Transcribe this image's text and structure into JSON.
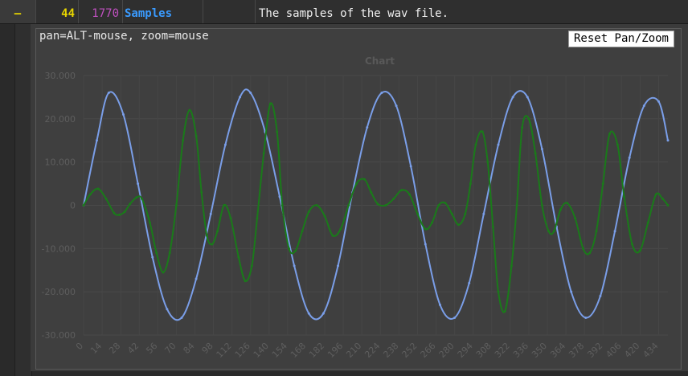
{
  "row": {
    "toggle": "–",
    "line_no": "44",
    "offset": "1770",
    "name": "Samples",
    "description": "The samples of the wav file."
  },
  "hint": "pan=ALT-mouse, zoom=mouse",
  "reset_label": "Reset Pan/Zoom",
  "colors": {
    "blue_series": "#7a9ee8",
    "green_series": "#1a7a1a",
    "toggle": "#e6d400",
    "offset": "#c050c0",
    "name": "#3a9bff"
  },
  "chart_data": {
    "type": "line",
    "title": "Chart",
    "xlabel": "",
    "ylabel": "",
    "xlim": [
      0,
      441
    ],
    "ylim": [
      -30000,
      30000
    ],
    "y_ticks": [
      30000,
      20000,
      10000,
      0,
      -10000,
      -20000,
      -30000
    ],
    "y_tick_labels": [
      "30.000",
      "20.000",
      "10.000",
      "0",
      "-10.000",
      "-20.000",
      "-30.000"
    ],
    "x_ticks": [
      0,
      14,
      28,
      42,
      56,
      70,
      84,
      98,
      112,
      126,
      140,
      154,
      168,
      182,
      196,
      210,
      224,
      238,
      252,
      266,
      280,
      294,
      308,
      322,
      336,
      350,
      364,
      378,
      392,
      406,
      420,
      434
    ],
    "grid": true,
    "series": [
      {
        "color": "#7a9ee8",
        "x": [
          0,
          10,
          19,
          30,
          41,
          52,
          63,
          74,
          85,
          96,
          107,
          118,
          126,
          137,
          148,
          159,
          170,
          181,
          192,
          203,
          214,
          225,
          236,
          247,
          258,
          269,
          280,
          291,
          302,
          313,
          324,
          335,
          346,
          357,
          368,
          379,
          390,
          401,
          412,
          423,
          434,
          441
        ],
        "y": [
          0,
          15000,
          26000,
          21000,
          5000,
          -12000,
          -24000,
          -26000,
          -17000,
          -2000,
          14000,
          25000,
          26000,
          17000,
          2000,
          -14000,
          -25000,
          -25000,
          -14000,
          3000,
          18000,
          26000,
          23000,
          9000,
          -9000,
          -23000,
          -26000,
          -18000,
          -2000,
          14000,
          25000,
          25000,
          13000,
          -5000,
          -20000,
          -26000,
          -21000,
          -6000,
          11000,
          23000,
          24000,
          15000
        ]
      },
      {
        "color": "#1a7a1a",
        "x": [
          0,
          5,
          11,
          17,
          23,
          27,
          31,
          35,
          40,
          44,
          50,
          55,
          60,
          65,
          70,
          75,
          80,
          85,
          89,
          93,
          97,
          101,
          106,
          111,
          117,
          122,
          127,
          131,
          136,
          141,
          146,
          150,
          155,
          160,
          165,
          170,
          176,
          182,
          188,
          194,
          200,
          206,
          212,
          217,
          222,
          228,
          234,
          240,
          246,
          252,
          258,
          263,
          268,
          273,
          278,
          283,
          288,
          292,
          296,
          301,
          305,
          309,
          313,
          318,
          323,
          327,
          331,
          336,
          341,
          346,
          351,
          355,
          360,
          365,
          371,
          377,
          382,
          387,
          392,
          397,
          403,
          408,
          414,
          420,
          426,
          432,
          437,
          441
        ],
        "y": [
          0,
          2500,
          3800,
          1500,
          -1800,
          -2200,
          -1500,
          300,
          1800,
          1500,
          -4000,
          -11000,
          -15500,
          -11000,
          0,
          15000,
          22000,
          16000,
          3000,
          -7000,
          -9000,
          -6000,
          0,
          -3000,
          -12000,
          -17500,
          -14000,
          -3000,
          12000,
          23500,
          17000,
          0,
          -10000,
          -10500,
          -6000,
          -1500,
          0,
          -2500,
          -7000,
          -5500,
          0,
          5000,
          6000,
          3000,
          300,
          0,
          1500,
          3500,
          2500,
          -2000,
          -5500,
          -4000,
          0,
          500,
          -2000,
          -4500,
          -2000,
          5000,
          14000,
          17000,
          10000,
          -5000,
          -20000,
          -24500,
          -14000,
          0,
          18000,
          20000,
          12000,
          0,
          -6000,
          -6000,
          -1000,
          500,
          -3000,
          -10000,
          -11000,
          -6000,
          5000,
          16500,
          14000,
          2000,
          -9000,
          -10500,
          -4000,
          2500,
          1500,
          0
        ]
      }
    ]
  }
}
